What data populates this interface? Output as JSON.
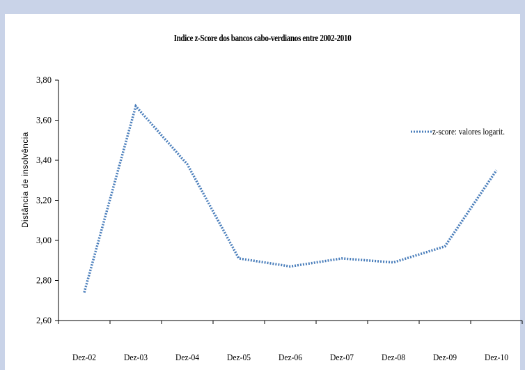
{
  "chart_data": {
    "type": "line",
    "title": "Indice z-Score dos bancos cabo-verdianos  entre 2002-2010",
    "xlabel": "",
    "ylabel": "Distância de insolvência",
    "categories": [
      "Dez-02",
      "Dez-03",
      "Dez-04",
      "Dez-05",
      "Dez-06",
      "Dez-07",
      "Dez-08",
      "Dez-09",
      "Dez-10"
    ],
    "series": [
      {
        "name": "z-score: valores logarit.",
        "values": [
          2.74,
          3.67,
          3.38,
          2.91,
          2.87,
          2.91,
          2.89,
          2.97,
          3.35
        ],
        "color": "#4a7ebb",
        "line_style": "dotted"
      }
    ],
    "ylim": [
      2.6,
      3.8
    ],
    "yticks": [
      "2,60",
      "2,80",
      "3,00",
      "3,20",
      "3,40",
      "3,60",
      "3,80"
    ],
    "ytick_values": [
      2.6,
      2.8,
      3.0,
      3.2,
      3.4,
      3.6,
      3.8
    ],
    "grid": false,
    "legend": "top-right"
  }
}
